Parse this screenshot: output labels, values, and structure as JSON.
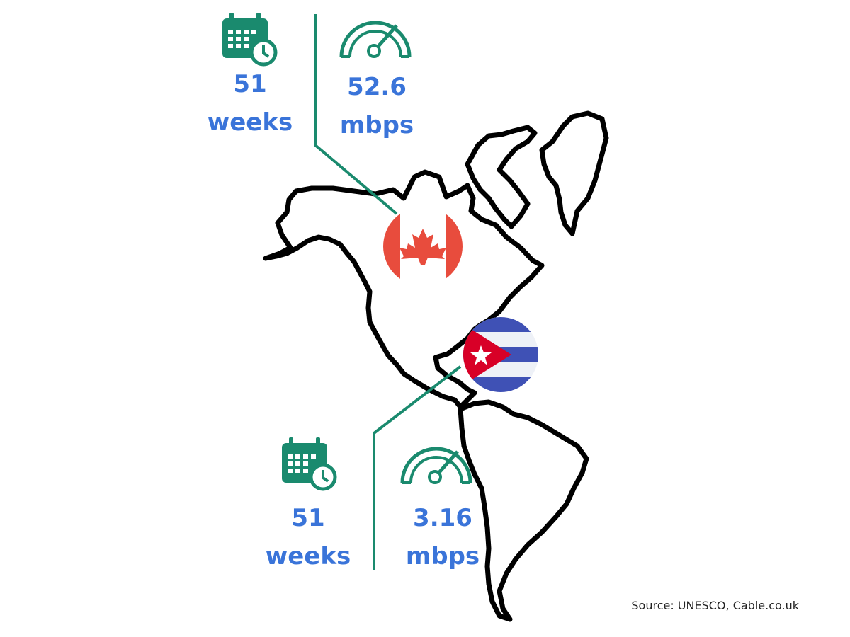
{
  "colors": {
    "accent_green": "#1a8a6e",
    "text_blue": "#3a74d9",
    "map_outline": "#000000",
    "canada_red": "#e84c3d",
    "cuba_blue": "#3f51b5",
    "cuba_red": "#d80027"
  },
  "canada": {
    "duration_value": "51",
    "duration_unit": "weeks",
    "speed_value": "52.6",
    "speed_unit": "mbps",
    "duration_icon": "calendar-clock-icon",
    "speed_icon": "speedometer-icon",
    "flag_icon": "canada-flag-icon"
  },
  "cuba": {
    "duration_value": "51",
    "duration_unit": "weeks",
    "speed_value": "3.16",
    "speed_unit": "mbps",
    "duration_icon": "calendar-clock-icon",
    "speed_icon": "speedometer-icon",
    "flag_icon": "cuba-flag-icon"
  },
  "source": "Source: UNESCO, Cable.co.uk"
}
